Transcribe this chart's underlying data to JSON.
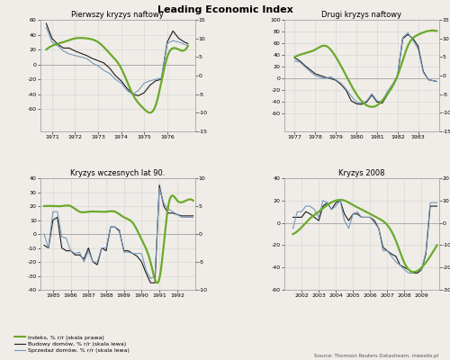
{
  "title": "Leading Economic Index",
  "source": "Source: Thomson Reuters Datastream, inwestio.pl",
  "legend_entries": [
    "Indeks, % r/r (skala prawa)",
    "Budowy domów, % r/r (skala lewa)",
    "Sprzedaż domów, % r/r (skala lewa)"
  ],
  "panels": [
    {
      "title": "Pierwszy kryzys naftowy",
      "xlim": [
        1970.5,
        1977.2
      ],
      "xticks": [
        1971,
        1972,
        1973,
        1974,
        1975,
        1976
      ],
      "ylim_left": [
        -90,
        60
      ],
      "ylim_right": [
        -15,
        15
      ],
      "yticks_left": [
        -60,
        -40,
        -20,
        0,
        20,
        40,
        60
      ],
      "yticks_right": [
        -15,
        -10,
        -5,
        0,
        5,
        10,
        15
      ],
      "x_green": [
        1970.75,
        1971.0,
        1971.5,
        1972.0,
        1972.5,
        1973.0,
        1973.5,
        1974.0,
        1974.5,
        1975.0,
        1975.5,
        1976.0,
        1976.5,
        1976.9
      ],
      "green": [
        7,
        8,
        9,
        10,
        10,
        9,
        6,
        2,
        -5,
        -9,
        -8,
        5,
        7,
        8
      ],
      "x_black": [
        1970.75,
        1971.0,
        1971.25,
        1971.5,
        1971.75,
        1972.0,
        1972.25,
        1972.5,
        1972.75,
        1973.0,
        1973.25,
        1973.5,
        1973.75,
        1974.0,
        1974.25,
        1974.5,
        1974.75,
        1975.0,
        1975.25,
        1975.5,
        1975.75,
        1976.0,
        1976.25,
        1976.5,
        1976.75,
        1976.9
      ],
      "black": [
        55,
        35,
        27,
        22,
        22,
        18,
        15,
        12,
        8,
        5,
        2,
        -5,
        -15,
        -22,
        -32,
        -40,
        -42,
        -38,
        -28,
        -22,
        -20,
        30,
        45,
        35,
        30,
        28
      ],
      "blue": [
        50,
        30,
        25,
        18,
        14,
        12,
        10,
        8,
        2,
        -2,
        -8,
        -12,
        -20,
        -25,
        -35,
        -40,
        -35,
        -25,
        -22,
        -20,
        -18,
        28,
        32,
        30,
        27,
        25
      ]
    },
    {
      "title": "Drugi kryzys naftowy",
      "xlim": [
        1976.5,
        1984.0
      ],
      "xticks": [
        1977,
        1978,
        1979,
        1980,
        1981,
        1982,
        1983
      ],
      "ylim_left": [
        -90,
        100
      ],
      "ylim_right": [
        -15,
        15
      ],
      "yticks_left": [
        -60,
        -40,
        -20,
        0,
        20,
        40,
        60,
        80,
        100
      ],
      "yticks_right": [
        -15,
        -10,
        -5,
        0,
        5,
        10,
        15
      ],
      "x_green": [
        1977.0,
        1977.5,
        1978.0,
        1978.5,
        1979.0,
        1979.5,
        1980.0,
        1980.5,
        1981.0,
        1981.5,
        1982.0,
        1982.5,
        1983.0,
        1983.5,
        1983.9
      ],
      "green": [
        5,
        6,
        7,
        8,
        5,
        0,
        -5,
        -8,
        -8,
        -5,
        0,
        8,
        11,
        12,
        12
      ],
      "x_black": [
        1977.0,
        1977.25,
        1977.5,
        1977.75,
        1978.0,
        1978.25,
        1978.5,
        1978.75,
        1979.0,
        1979.25,
        1979.5,
        1979.75,
        1980.0,
        1980.25,
        1980.5,
        1980.75,
        1981.0,
        1981.25,
        1981.5,
        1981.75,
        1982.0,
        1982.25,
        1982.5,
        1982.75,
        1983.0,
        1983.25,
        1983.5,
        1983.9
      ],
      "black": [
        35,
        30,
        22,
        15,
        8,
        5,
        2,
        0,
        -3,
        -10,
        -20,
        -38,
        -43,
        -44,
        -40,
        -28,
        -40,
        -42,
        -28,
        -12,
        5,
        68,
        75,
        68,
        55,
        12,
        -2,
        -5
      ],
      "blue": [
        30,
        28,
        20,
        12,
        5,
        2,
        0,
        3,
        -2,
        -8,
        -18,
        -30,
        -40,
        -42,
        -38,
        -26,
        -38,
        -40,
        -22,
        -10,
        5,
        70,
        78,
        65,
        50,
        10,
        -2,
        -5
      ]
    },
    {
      "title": "Kryzys wczesnych lat 90.",
      "xlim": [
        1984.3,
        1993.0
      ],
      "xticks": [
        1985,
        1986,
        1987,
        1988,
        1989,
        1990,
        1991,
        1992
      ],
      "ylim_left": [
        -40,
        40
      ],
      "ylim_right": [
        -10,
        10
      ],
      "yticks_left": [
        -40,
        -30,
        -20,
        -10,
        0,
        10,
        20,
        30,
        40
      ],
      "yticks_right": [
        -10,
        -5,
        0,
        5,
        10
      ],
      "x_green": [
        1984.5,
        1985.0,
        1985.5,
        1986.0,
        1986.5,
        1987.0,
        1987.5,
        1988.0,
        1988.5,
        1989.0,
        1989.5,
        1990.0,
        1990.5,
        1991.0,
        1991.5,
        1992.0,
        1992.5,
        1992.9
      ],
      "green": [
        5,
        5,
        5,
        5,
        4,
        4,
        4,
        4,
        4,
        3,
        2,
        -1,
        -5,
        -8,
        5,
        6,
        6,
        6
      ],
      "x_black": [
        1984.5,
        1984.75,
        1985.0,
        1985.25,
        1985.5,
        1985.75,
        1986.0,
        1986.25,
        1986.5,
        1986.75,
        1987.0,
        1987.25,
        1987.5,
        1987.75,
        1988.0,
        1988.25,
        1988.5,
        1988.75,
        1989.0,
        1989.25,
        1989.5,
        1989.75,
        1990.0,
        1990.25,
        1990.5,
        1990.75,
        1991.0,
        1991.25,
        1991.5,
        1991.75,
        1992.0,
        1992.25,
        1992.5,
        1992.9
      ],
      "black": [
        -8,
        -10,
        10,
        12,
        -10,
        -12,
        -12,
        -15,
        -15,
        -18,
        -10,
        -20,
        -22,
        -10,
        -12,
        5,
        5,
        2,
        -12,
        -12,
        -14,
        -16,
        -20,
        -28,
        -35,
        -35,
        35,
        20,
        15,
        15,
        14,
        13,
        13,
        13
      ],
      "blue": [
        0,
        -10,
        16,
        16,
        -2,
        -3,
        -12,
        -14,
        -13,
        -20,
        -12,
        -20,
        -20,
        -10,
        -10,
        5,
        5,
        3,
        -13,
        -13,
        -14,
        -14,
        -14,
        -26,
        -32,
        -30,
        33,
        22,
        18,
        16,
        14,
        12,
        12,
        12
      ]
    },
    {
      "title": "Kryzys 2008",
      "xlim": [
        2001.0,
        2010.0
      ],
      "xticks": [
        2002,
        2003,
        2004,
        2005,
        2006,
        2007,
        2008,
        2009
      ],
      "ylim_left": [
        -60,
        40
      ],
      "ylim_right": [
        -30,
        20
      ],
      "yticks_left": [
        -60,
        -40,
        -20,
        0,
        20,
        40
      ],
      "yticks_right": [
        -30,
        -20,
        -10,
        0,
        10,
        20
      ],
      "x_green": [
        2001.5,
        2002.0,
        2002.5,
        2003.0,
        2003.5,
        2004.0,
        2004.5,
        2005.0,
        2005.5,
        2006.0,
        2006.5,
        2007.0,
        2007.5,
        2008.0,
        2008.5,
        2009.0,
        2009.5,
        2009.9
      ],
      "green": [
        -5,
        -2,
        2,
        5,
        8,
        10,
        10,
        8,
        6,
        4,
        2,
        -1,
        -8,
        -18,
        -22,
        -20,
        -15,
        -10
      ],
      "x_black": [
        2001.5,
        2001.75,
        2002.0,
        2002.25,
        2002.5,
        2002.75,
        2003.0,
        2003.25,
        2003.5,
        2003.75,
        2004.0,
        2004.25,
        2004.5,
        2004.75,
        2005.0,
        2005.25,
        2005.5,
        2005.75,
        2006.0,
        2006.25,
        2006.5,
        2006.75,
        2007.0,
        2007.25,
        2007.5,
        2007.75,
        2008.0,
        2008.25,
        2008.5,
        2008.75,
        2009.0,
        2009.25,
        2009.5,
        2009.9
      ],
      "black": [
        5,
        5,
        5,
        10,
        8,
        5,
        2,
        15,
        18,
        12,
        18,
        20,
        8,
        2,
        8,
        8,
        5,
        5,
        5,
        2,
        -5,
        -22,
        -25,
        -28,
        -30,
        -38,
        -40,
        -42,
        -45,
        -45,
        -42,
        -28,
        15,
        15
      ],
      "blue": [
        -5,
        10,
        10,
        15,
        15,
        12,
        5,
        20,
        18,
        12,
        15,
        20,
        2,
        -5,
        8,
        10,
        5,
        5,
        5,
        0,
        -5,
        -25,
        -25,
        -30,
        -35,
        -38,
        -42,
        -45,
        -45,
        -43,
        -42,
        -26,
        18,
        18
      ]
    }
  ],
  "green_color": "#6aaa2a",
  "black_color": "#1a1a1a",
  "blue_color": "#7799bb",
  "background_color": "#f0ede8",
  "grid_color": "#cccccc"
}
